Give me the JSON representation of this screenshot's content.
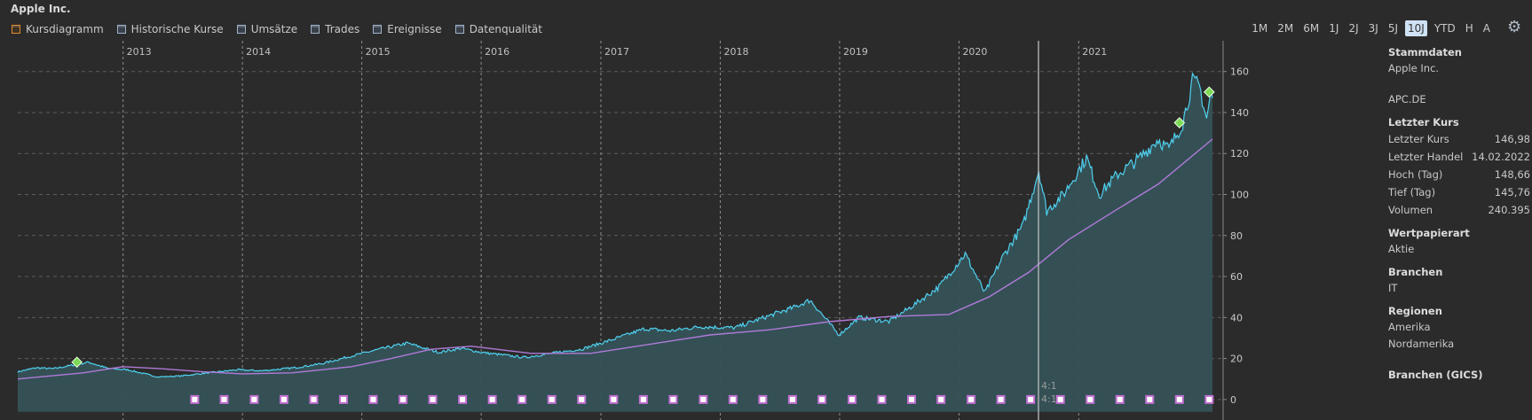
{
  "window": {
    "title": "Apple Inc."
  },
  "tabs": [
    {
      "label": "Kursdiagramm",
      "active": true
    },
    {
      "label": "Historische Kurse",
      "active": false
    },
    {
      "label": "Umsätze",
      "active": false
    },
    {
      "label": "Trades",
      "active": false
    },
    {
      "label": "Ereignisse",
      "active": false
    },
    {
      "label": "Datenqualität",
      "active": false
    }
  ],
  "ranges": [
    "1M",
    "2M",
    "6M",
    "1J",
    "2J",
    "3J",
    "5J",
    "10J",
    "YTD",
    "H",
    "A"
  ],
  "range_selected": "10J",
  "icons": {
    "settings": "gear-icon"
  },
  "colors": {
    "price_line": "#4fd1f0",
    "area_fill": "#355257",
    "moving_avg_above": "#b07ad8",
    "moving_avg_below": "#d878c8",
    "event_marker": "#c070d0",
    "dividend_marker": "#7ed957",
    "background": "#2b2b2b"
  },
  "chart_data": {
    "type": "line",
    "x_type": "date",
    "x_range": [
      "2012-02-14",
      "2022-02-14"
    ],
    "ylim": [
      -10,
      175
    ],
    "y_ticks": [
      0,
      20,
      40,
      60,
      80,
      100,
      120,
      140,
      160
    ],
    "year_labels": [
      "2013",
      "2014",
      "2015",
      "2016",
      "2017",
      "2018",
      "2019",
      "2020",
      "2021"
    ],
    "grid": true,
    "series": [
      {
        "kind": "price",
        "points": [
          [
            "2012-02-14",
            13.5
          ],
          [
            "2012-04-10",
            15.5
          ],
          [
            "2012-06-01",
            15.0
          ],
          [
            "2012-09-18",
            18.2
          ],
          [
            "2012-11-15",
            15.2
          ],
          [
            "2013-01-15",
            14.5
          ],
          [
            "2013-04-18",
            11.0
          ],
          [
            "2013-06-28",
            11.5
          ],
          [
            "2013-09-18",
            13.0
          ],
          [
            "2013-12-15",
            14.5
          ],
          [
            "2014-03-01",
            14.0
          ],
          [
            "2014-06-10",
            15.5
          ],
          [
            "2014-09-01",
            17.5
          ],
          [
            "2014-11-25",
            21.0
          ],
          [
            "2015-02-23",
            24.5
          ],
          [
            "2015-05-20",
            27.5
          ],
          [
            "2015-08-24",
            23.0
          ],
          [
            "2015-11-01",
            25.0
          ],
          [
            "2016-01-01",
            23.0
          ],
          [
            "2016-05-12",
            20.5
          ],
          [
            "2016-08-01",
            22.5
          ],
          [
            "2016-11-01",
            24.5
          ],
          [
            "2017-02-01",
            29.0
          ],
          [
            "2017-05-15",
            34.5
          ],
          [
            "2017-08-01",
            33.5
          ],
          [
            "2017-11-01",
            35.5
          ],
          [
            "2018-02-15",
            35.0
          ],
          [
            "2018-05-15",
            40.0
          ],
          [
            "2018-08-15",
            45.0
          ],
          [
            "2018-10-03",
            48.5
          ],
          [
            "2018-12-30",
            31.5
          ],
          [
            "2019-03-01",
            40.0
          ],
          [
            "2019-06-01",
            38.0
          ],
          [
            "2019-08-15",
            46.0
          ],
          [
            "2019-11-01",
            55.0
          ],
          [
            "2020-01-20",
            71.0
          ],
          [
            "2020-03-20",
            52.0
          ],
          [
            "2020-05-15",
            70.0
          ],
          [
            "2020-07-15",
            85.0
          ],
          [
            "2020-09-01",
            112.0
          ],
          [
            "2020-09-25",
            92.0
          ],
          [
            "2020-11-15",
            100.0
          ],
          [
            "2021-01-25",
            118.0
          ],
          [
            "2021-03-05",
            100.0
          ],
          [
            "2021-05-01",
            110.0
          ],
          [
            "2021-07-01",
            117.0
          ],
          [
            "2021-09-01",
            127.0
          ],
          [
            "2021-10-04",
            122.0
          ],
          [
            "2021-11-15",
            135.0
          ],
          [
            "2021-12-15",
            155.0
          ],
          [
            "2022-01-05",
            153.0
          ],
          [
            "2022-01-27",
            137.0
          ],
          [
            "2022-02-10",
            150.0
          ],
          [
            "2022-02-14",
            146.98
          ]
        ]
      },
      {
        "kind": "moving_average",
        "points": [
          [
            "2012-02-14",
            10.0
          ],
          [
            "2012-09-01",
            13.0
          ],
          [
            "2013-01-01",
            16.0
          ],
          [
            "2013-05-01",
            15.0
          ],
          [
            "2013-09-01",
            13.5
          ],
          [
            "2014-01-01",
            12.5
          ],
          [
            "2014-06-01",
            13.0
          ],
          [
            "2014-12-01",
            16.0
          ],
          [
            "2015-04-01",
            20.0
          ],
          [
            "2015-08-01",
            24.5
          ],
          [
            "2015-12-01",
            26.0
          ],
          [
            "2016-06-01",
            22.5
          ],
          [
            "2016-12-01",
            22.5
          ],
          [
            "2017-06-01",
            27.0
          ],
          [
            "2017-12-01",
            31.5
          ],
          [
            "2018-06-01",
            34.0
          ],
          [
            "2018-12-01",
            38.0
          ],
          [
            "2019-06-01",
            40.5
          ],
          [
            "2019-12-01",
            41.5
          ],
          [
            "2020-04-01",
            50.0
          ],
          [
            "2020-08-01",
            62.0
          ],
          [
            "2020-12-01",
            78.0
          ],
          [
            "2021-05-01",
            93.0
          ],
          [
            "2021-09-01",
            105.0
          ],
          [
            "2022-02-14",
            127.0
          ]
        ]
      }
    ],
    "dividends": [
      "2012-08-13",
      "2021-11-05",
      "2022-02-04"
    ],
    "events": [
      "2013-08-08",
      "2013-11-06",
      "2014-02-06",
      "2014-05-08",
      "2014-08-07",
      "2014-11-06",
      "2015-02-05",
      "2015-05-07",
      "2015-08-06",
      "2015-11-05",
      "2016-02-04",
      "2016-05-05",
      "2016-08-04",
      "2016-11-03",
      "2017-02-09",
      "2017-05-11",
      "2017-08-10",
      "2017-11-10",
      "2018-02-09",
      "2018-05-11",
      "2018-08-10",
      "2018-11-08",
      "2019-02-08",
      "2019-05-10",
      "2019-08-09",
      "2019-11-07",
      "2020-02-07",
      "2020-05-08",
      "2020-08-07",
      "2020-11-06",
      "2021-02-05",
      "2021-05-07",
      "2021-08-06",
      "2021-11-05",
      "2022-02-04"
    ],
    "split": {
      "date": "2020-08-31",
      "labels": [
        "4:1",
        "4:1"
      ]
    }
  },
  "sidebar": {
    "stammdaten_h": "Stammdaten",
    "name": "Apple Inc.",
    "ticker": "APC.DE",
    "letzter_kurs_h": "Letzter Kurs",
    "rows": [
      {
        "label": "Letzter Kurs",
        "value": "146,98"
      },
      {
        "label": "Letzter Handel",
        "value": "14.02.2022"
      },
      {
        "label": "Hoch (Tag)",
        "value": "148,66"
      },
      {
        "label": "Tief (Tag)",
        "value": "145,76"
      },
      {
        "label": "Volumen",
        "value": "240.395"
      }
    ],
    "wertpapierart_h": "Wertpapierart",
    "wertpapierart": "Aktie",
    "branchen_h": "Branchen",
    "branche": "IT",
    "regionen_h": "Regionen",
    "region_1": "Amerika",
    "region_2": "Nordamerika",
    "branchen_gics_h": "Branchen (GICS)"
  }
}
